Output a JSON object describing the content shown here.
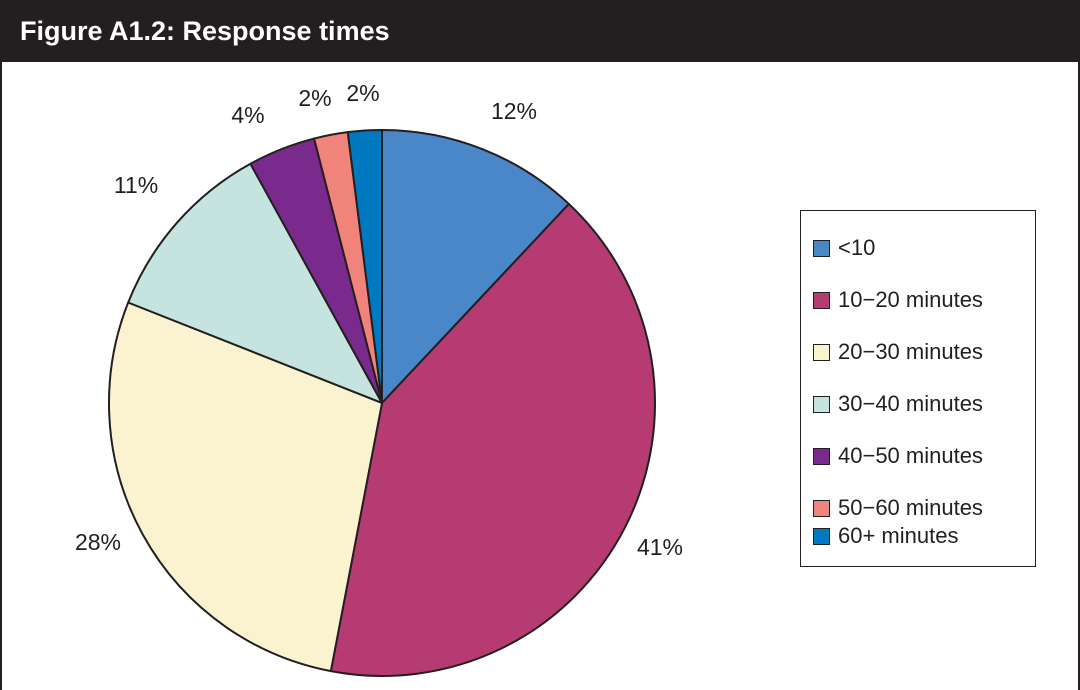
{
  "figure": {
    "title": "Figure A1.2:  Response times"
  },
  "chart_data": {
    "type": "pie",
    "title": "Figure A1.2:  Response times",
    "legend_position": "right",
    "start_angle": "12 o'clock, clockwise",
    "slices": [
      {
        "label": "<10",
        "value": 12,
        "display": "12%",
        "color": "#4a87c9"
      },
      {
        "label": "10−20 minutes",
        "value": 41,
        "display": "41%",
        "color": "#b73b73"
      },
      {
        "label": "20−30 minutes",
        "value": 28,
        "display": "28%",
        "color": "#fbf3d0"
      },
      {
        "label": "30−40 minutes",
        "value": 11,
        "display": "11%",
        "color": "#c5e4df"
      },
      {
        "label": "40−50 minutes",
        "value": 4,
        "display": "4%",
        "color": "#7a2a8c"
      },
      {
        "label": "50−60 minutes",
        "value": 2,
        "display": "2%",
        "color": "#f1847a"
      },
      {
        "label": "60+ minutes",
        "value": 2,
        "display": "2%",
        "color": "#0079c1"
      }
    ]
  }
}
